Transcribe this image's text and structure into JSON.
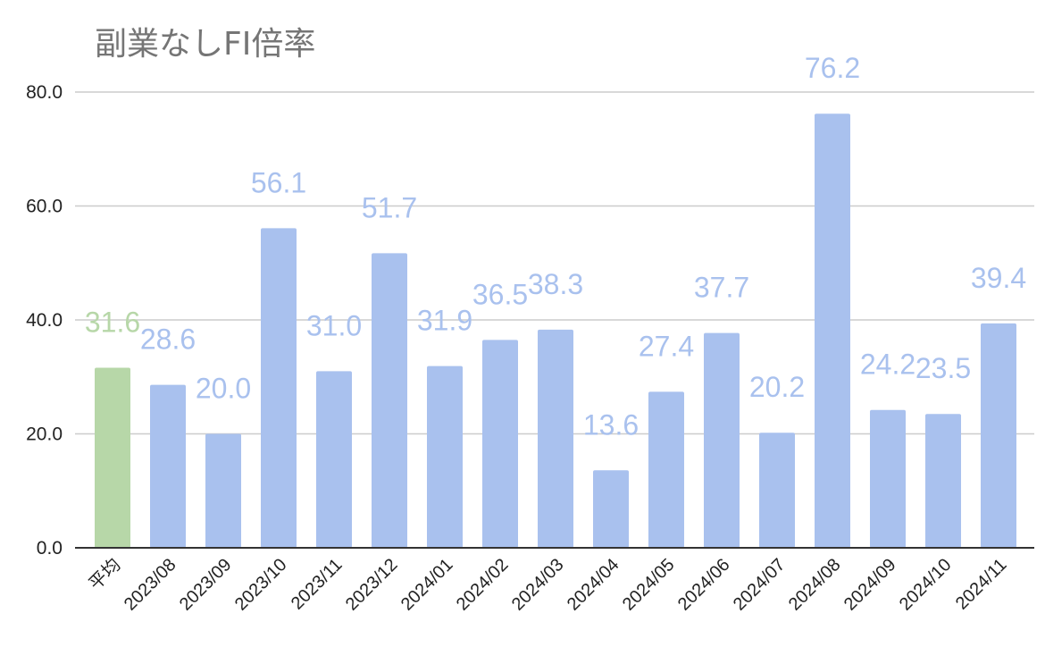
{
  "chart_data": {
    "type": "bar",
    "title": "副業なしFI倍率",
    "xlabel": "",
    "ylabel": "",
    "ylim": [
      0,
      80
    ],
    "yticks": [
      "0.0",
      "20.0",
      "40.0",
      "60.0",
      "80.0"
    ],
    "grid": true,
    "legend": "none",
    "categories": [
      "平均",
      "2023/08",
      "2023/09",
      "2023/10",
      "2023/11",
      "2023/12",
      "2024/01",
      "2024/02",
      "2024/03",
      "2024/04",
      "2024/05",
      "2024/06",
      "2024/07",
      "2024/08",
      "2024/09",
      "2024/10",
      "2024/11"
    ],
    "values": [
      31.6,
      28.6,
      20.0,
      56.1,
      31.0,
      51.7,
      31.9,
      36.5,
      38.3,
      13.6,
      27.4,
      37.7,
      20.2,
      76.2,
      24.2,
      23.5,
      39.4
    ],
    "value_labels": [
      "31.6",
      "28.6",
      "20.0",
      "56.1",
      "31.0",
      "51.7",
      "31.9",
      "36.5",
      "38.3",
      "13.6",
      "27.4",
      "37.7",
      "20.2",
      "76.2",
      "24.2",
      "23.5",
      "39.4"
    ],
    "colors": {
      "highlight_bar": "#b7d7a8",
      "highlight_label": "#b7d7a8",
      "bar": "#a9c1ee",
      "label": "#a9c1ee",
      "grid": "#cccccc",
      "axis": "#333333",
      "title": "#757575"
    }
  }
}
